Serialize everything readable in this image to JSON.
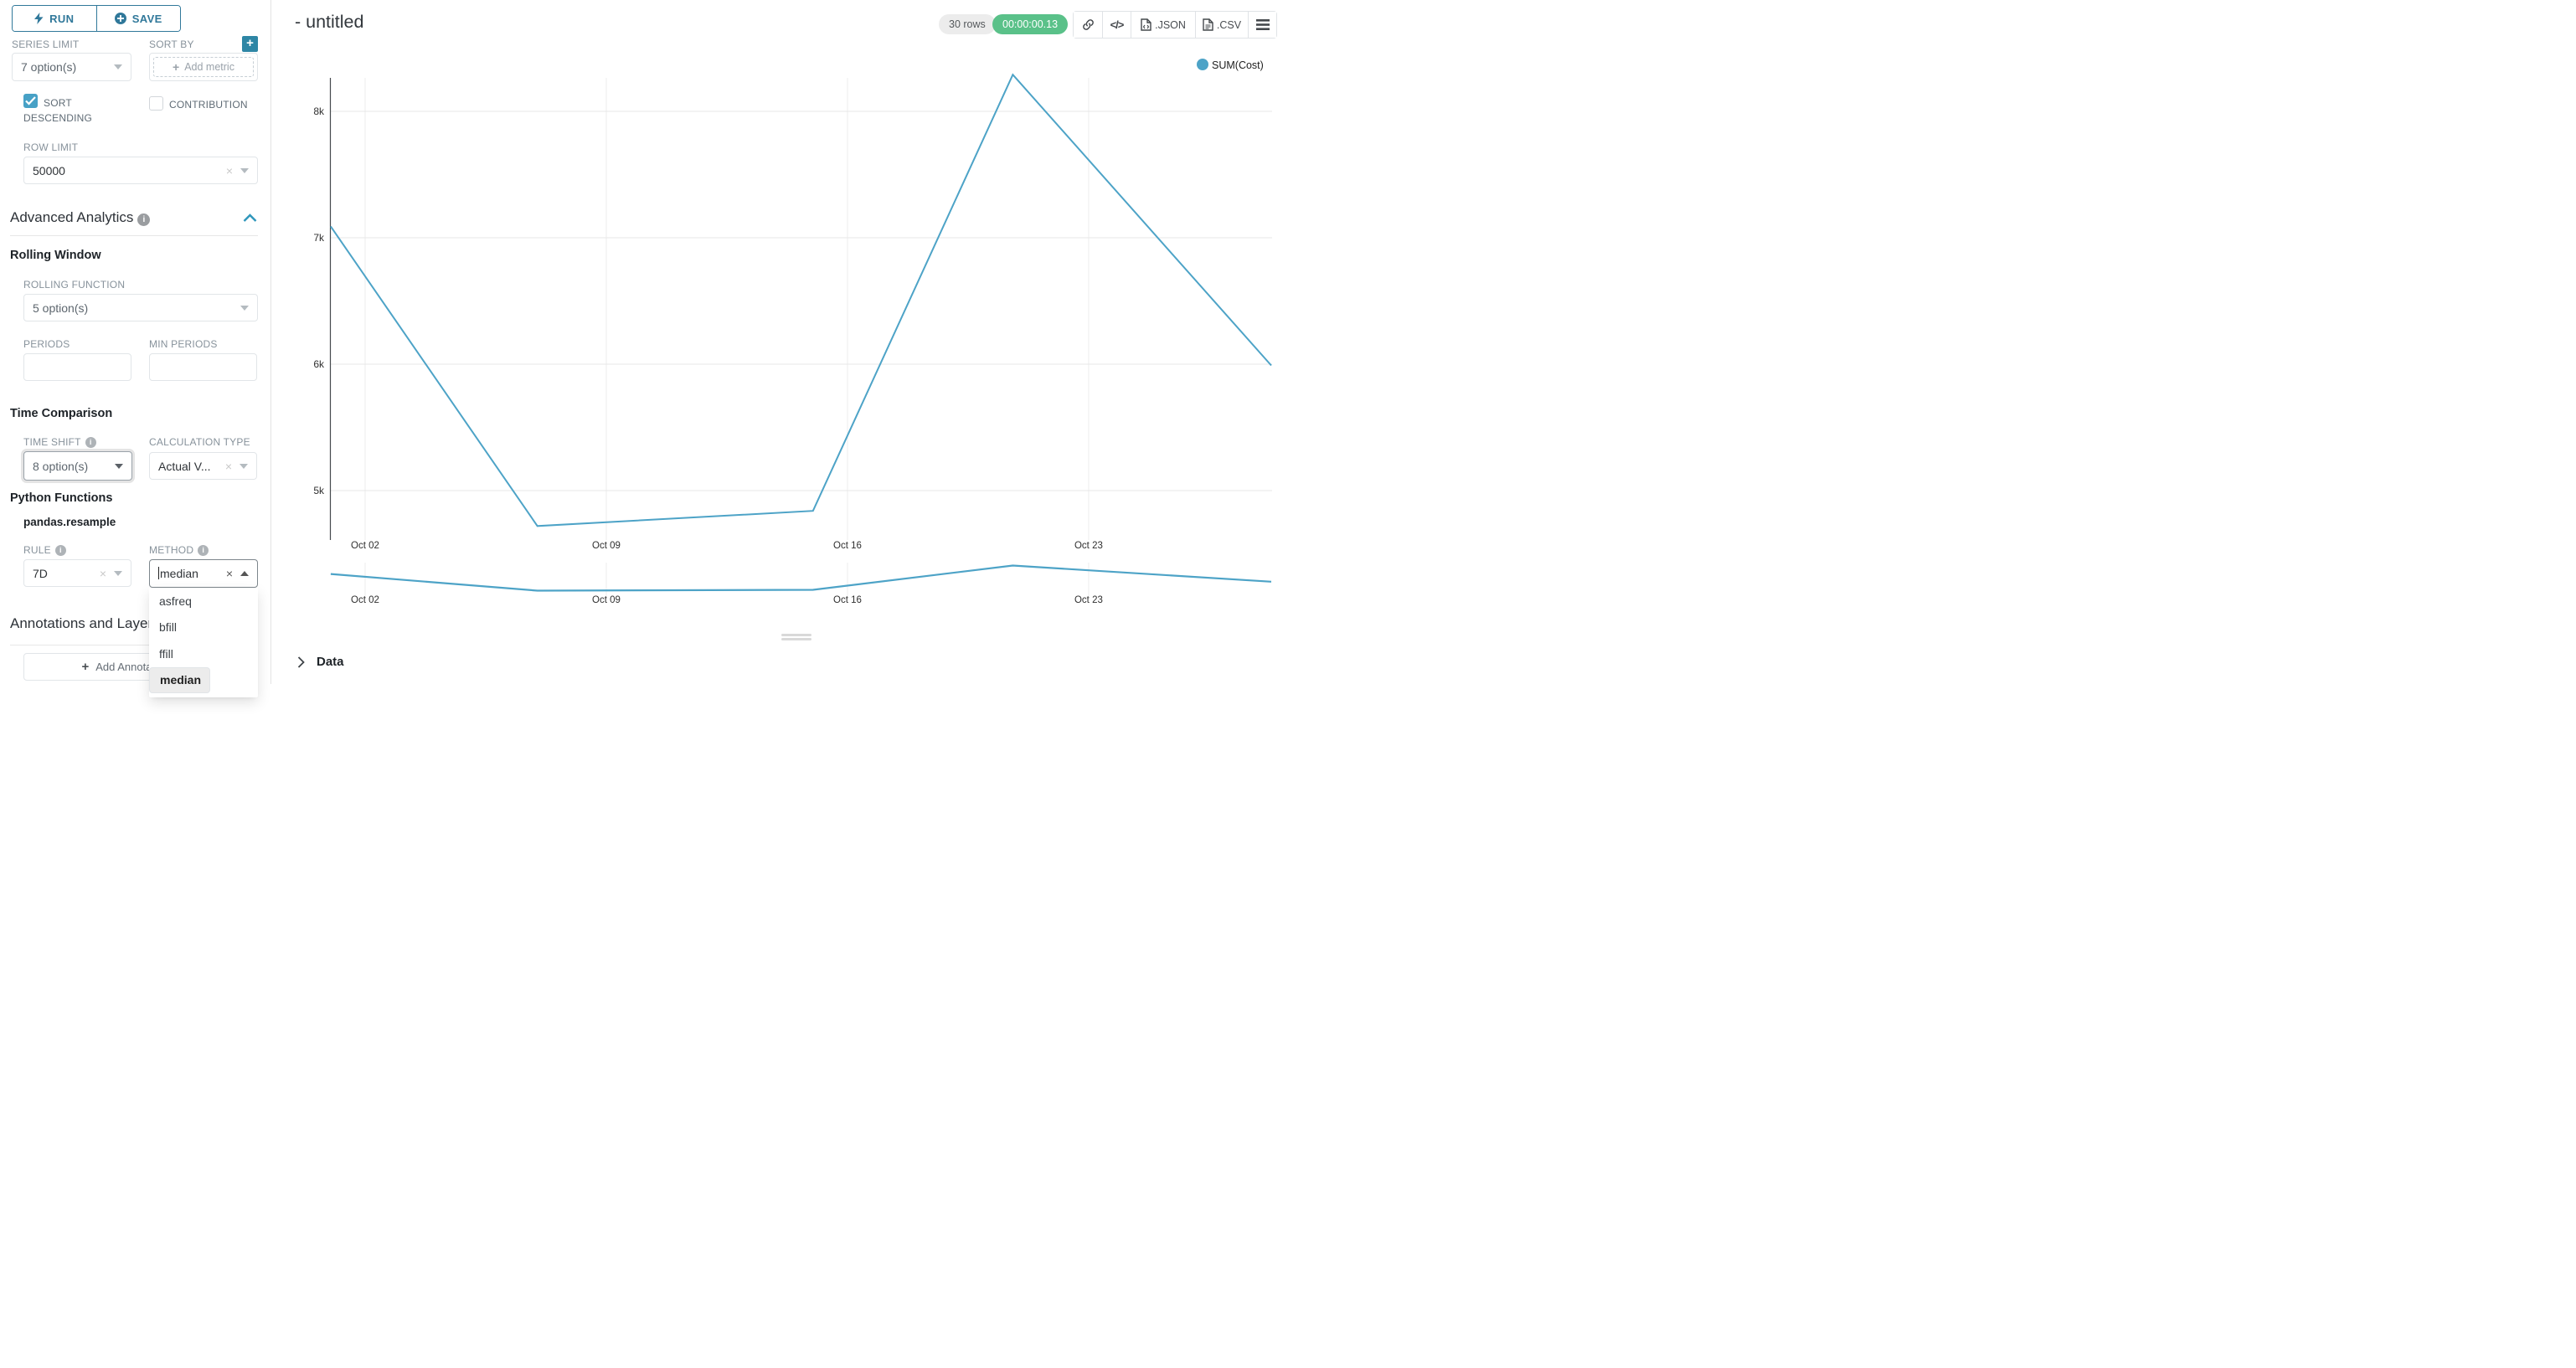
{
  "sidebar": {
    "run_label": "RUN",
    "save_label": "SAVE",
    "series_limit": {
      "label": "SERIES LIMIT",
      "value": "7 option(s)"
    },
    "sort_by": {
      "label": "SORT BY",
      "placeholder": "Add metric"
    },
    "sort_descending_label": "SORT DESCENDING",
    "contribution_label": "CONTRIBUTION",
    "row_limit": {
      "label": "ROW LIMIT",
      "value": "50000"
    },
    "advanced_analytics_title": "Advanced Analytics",
    "rolling_window_title": "Rolling Window",
    "rolling_function": {
      "label": "ROLLING FUNCTION",
      "value": "5 option(s)"
    },
    "periods_label": "PERIODS",
    "min_periods_label": "MIN PERIODS",
    "time_comparison_title": "Time Comparison",
    "time_shift": {
      "label": "TIME SHIFT",
      "value": "8 option(s)"
    },
    "calculation_type": {
      "label": "CALCULATION TYPE",
      "value": "Actual V..."
    },
    "python_functions_title": "Python Functions",
    "pandas_resample_label": "pandas.resample",
    "rule": {
      "label": "RULE",
      "value": "7D"
    },
    "method": {
      "label": "METHOD",
      "value": "median",
      "options": [
        "asfreq",
        "bfill",
        "ffill",
        "median"
      ],
      "selected": "median"
    },
    "annotations_title": "Annotations and Layers",
    "add_annotation_label": "Add Annotation Layer"
  },
  "header": {
    "title": "- untitled",
    "rows_badge": "30 rows",
    "timer": "00:00:00.13",
    "json_label": ".JSON",
    "csv_label": ".CSV"
  },
  "data_panel": {
    "label": "Data"
  },
  "colors": {
    "accent_teal": "#30789a",
    "checkbox_teal": "#47a1c6",
    "success_green": "#5ac189",
    "line_blue": "#4da3c7"
  },
  "chart_data": {
    "type": "line",
    "title": "",
    "legend_position": "top-right",
    "grid": true,
    "line_color": "#4da3c7",
    "x_ticks": [
      {
        "label": "Oct 02",
        "day": 0
      },
      {
        "label": "Oct 09",
        "day": 7
      },
      {
        "label": "Oct 16",
        "day": 14
      },
      {
        "label": "Oct 23",
        "day": 21
      }
    ],
    "y_ticks": [
      {
        "label": "8k",
        "value": 8000
      },
      {
        "label": "7k",
        "value": 7000
      },
      {
        "label": "6k",
        "value": 6000
      },
      {
        "label": "5k",
        "value": 5000
      }
    ],
    "y_range": [
      4600,
      8400
    ],
    "series": [
      {
        "name": "SUM(Cost)",
        "points": [
          {
            "date": "Oct 01",
            "day": -1,
            "value": 7090
          },
          {
            "date": "Oct 07",
            "day": 5,
            "value": 4720
          },
          {
            "date": "Oct 15",
            "day": 13,
            "value": 4840
          },
          {
            "date": "Oct 21",
            "day": 18.8,
            "value": 8290
          },
          {
            "date": "Oct 28",
            "day": 26.3,
            "value": 5990
          }
        ]
      }
    ]
  }
}
